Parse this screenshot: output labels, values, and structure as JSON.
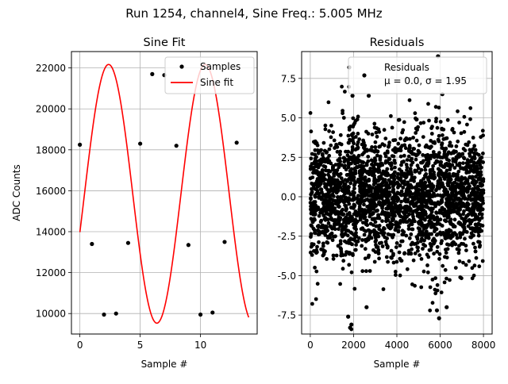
{
  "suptitle": "Run 1254, channel4, Sine Freq.: 5.005 MHz",
  "chart_data": [
    {
      "type": "scatter",
      "title": "Sine Fit",
      "xlabel": "Sample #",
      "ylabel": "ADC Counts",
      "xlim": [
        -0.7,
        14.7
      ],
      "ylim": [
        9000,
        22800
      ],
      "xticks": [
        0,
        5,
        10
      ],
      "yticks": [
        10000,
        12000,
        14000,
        16000,
        18000,
        20000,
        22000
      ],
      "grid": true,
      "legend": {
        "placement": "top-right",
        "entries": [
          "Samples",
          "Sine fit"
        ]
      },
      "series": [
        {
          "name": "Samples",
          "marker": "dot",
          "color": "#000000",
          "x": [
            0,
            1,
            2,
            3,
            4,
            5,
            6,
            7,
            8,
            9,
            10,
            11,
            12,
            13
          ],
          "y": [
            18250,
            13400,
            9950,
            10000,
            13450,
            18300,
            21700,
            21650,
            18200,
            13350,
            9950,
            10050,
            13500,
            18350
          ]
        },
        {
          "name": "Sine fit",
          "line": true,
          "color": "#ff0000",
          "model": "y = 15850 + 6320*sin(2*pi*(x - 0.383)/8.0)",
          "x_range": [
            0,
            14
          ]
        }
      ]
    },
    {
      "type": "scatter",
      "title": "Residuals",
      "xlabel": "Sample #",
      "xlim": [
        -400,
        8400
      ],
      "ylim": [
        -8.7,
        9.2
      ],
      "xticks": [
        0,
        2000,
        4000,
        6000,
        8000
      ],
      "yticks": [
        -7.5,
        -5.0,
        -2.5,
        0.0,
        2.5,
        5.0,
        7.5
      ],
      "grid": true,
      "legend": {
        "placement": "top-right",
        "entries": [
          "Residuals",
          "μ = 0.0, σ = 1.95"
        ]
      },
      "series": [
        {
          "name": "Residuals",
          "color": "#000000",
          "x_range": [
            0,
            8000
          ],
          "count": 8000,
          "mean": 0.0,
          "std": 1.95,
          "outliers": [
            {
              "x": 1840,
              "y": -8.3
            },
            {
              "x": 1900,
              "y": -8.1
            },
            {
              "x": 1800,
              "y": 8.2
            },
            {
              "x": 5900,
              "y": 8.9
            },
            {
              "x": 5950,
              "y": -7.7
            },
            {
              "x": 5850,
              "y": -7.2
            },
            {
              "x": 1750,
              "y": -7.6
            },
            {
              "x": 2700,
              "y": 6.4
            },
            {
              "x": 2600,
              "y": -7.0
            },
            {
              "x": 6300,
              "y": -7.0
            },
            {
              "x": 6100,
              "y": 6.5
            },
            {
              "x": 1950,
              "y": 6.4
            }
          ]
        }
      ]
    }
  ]
}
